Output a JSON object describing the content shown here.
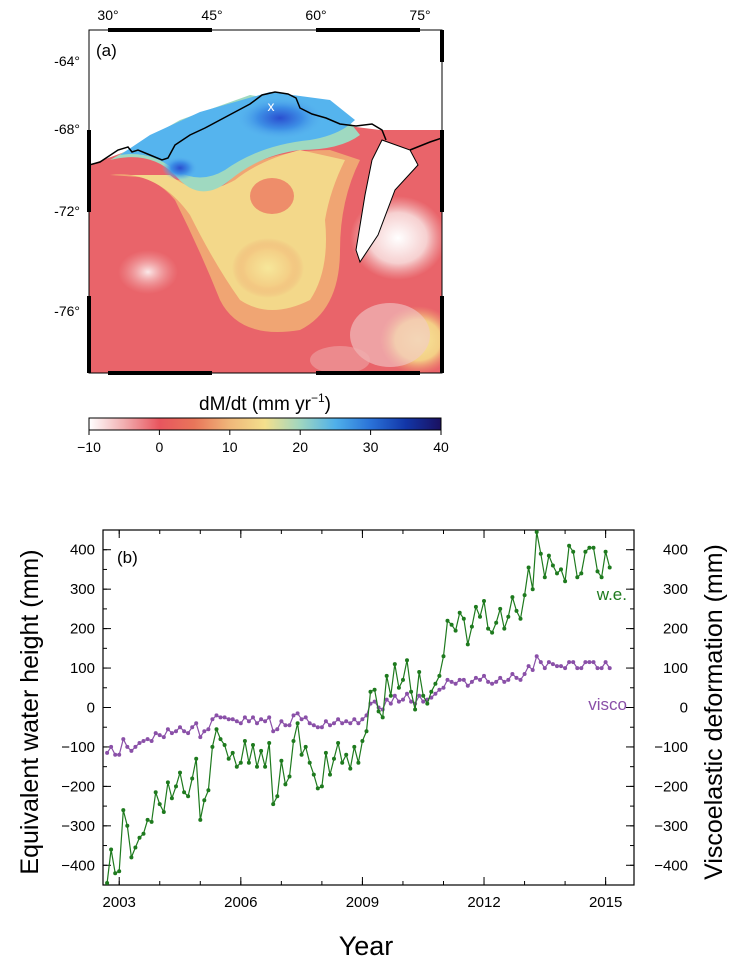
{
  "map_panel": {
    "label": "(a)",
    "lon_ticks": [
      "30°",
      "45°",
      "60°",
      "75°"
    ],
    "lat_ticks": [
      "-64°",
      "-68°",
      "-72°",
      "-76°"
    ],
    "marker": "x",
    "colorbar_title_main": "dM/dt (mm yr",
    "colorbar_title_exp": "−1",
    "colorbar_title_close": ")",
    "colorbar_ticks": [
      "−10",
      "0",
      "10",
      "20",
      "30",
      "40"
    ],
    "colorbar_range": [
      -10,
      40
    ],
    "colorbar_colors": [
      "#ffffff",
      "#f1aeb0",
      "#e8555e",
      "#e9765a",
      "#efb77a",
      "#f4e08d",
      "#9fd6c0",
      "#4fb0ea",
      "#2a72d8",
      "#1236a8",
      "#1a1060"
    ]
  },
  "chart_data": {
    "type": "line",
    "label": "(b)",
    "xlabel": "Year",
    "ylabel_left": "Equivalent water height (mm)",
    "ylabel_right": "Viscoelastic deformation (mm)",
    "xlim": [
      2002.6,
      2015.7
    ],
    "ylim": [
      -450,
      450
    ],
    "x_ticks": [
      "2003",
      "2006",
      "2009",
      "2012",
      "2015"
    ],
    "x_tick_values": [
      2003,
      2006,
      2009,
      2012,
      2015
    ],
    "y_ticks": [
      "400",
      "300",
      "200",
      "100",
      "0",
      "−100",
      "−200",
      "−300",
      "−400"
    ],
    "y_tick_values": [
      400,
      300,
      200,
      100,
      0,
      -100,
      -200,
      -300,
      -400
    ],
    "series": [
      {
        "name": "w.e.",
        "color": "#1e7a1e",
        "points": [
          [
            2002.7,
            -445
          ],
          [
            2002.8,
            -360
          ],
          [
            2002.9,
            -420
          ],
          [
            2003.0,
            -415
          ],
          [
            2003.1,
            -260
          ],
          [
            2003.2,
            -300
          ],
          [
            2003.3,
            -380
          ],
          [
            2003.4,
            -355
          ],
          [
            2003.5,
            -330
          ],
          [
            2003.6,
            -320
          ],
          [
            2003.7,
            -285
          ],
          [
            2003.8,
            -290
          ],
          [
            2003.9,
            -215
          ],
          [
            2004.0,
            -245
          ],
          [
            2004.1,
            -265
          ],
          [
            2004.2,
            -190
          ],
          [
            2004.3,
            -230
          ],
          [
            2004.4,
            -200
          ],
          [
            2004.5,
            -165
          ],
          [
            2004.6,
            -215
          ],
          [
            2004.7,
            -225
          ],
          [
            2004.8,
            -180
          ],
          [
            2004.9,
            -130
          ],
          [
            2005.0,
            -285
          ],
          [
            2005.1,
            -235
          ],
          [
            2005.2,
            -210
          ],
          [
            2005.3,
            -100
          ],
          [
            2005.4,
            -55
          ],
          [
            2005.5,
            -80
          ],
          [
            2005.6,
            -95
          ],
          [
            2005.7,
            -130
          ],
          [
            2005.8,
            -115
          ],
          [
            2005.9,
            -150
          ],
          [
            2006.0,
            -140
          ],
          [
            2006.1,
            -85
          ],
          [
            2006.2,
            -140
          ],
          [
            2006.3,
            -95
          ],
          [
            2006.4,
            -150
          ],
          [
            2006.5,
            -110
          ],
          [
            2006.6,
            -150
          ],
          [
            2006.7,
            -90
          ],
          [
            2006.8,
            -245
          ],
          [
            2006.9,
            -225
          ],
          [
            2007.0,
            -135
          ],
          [
            2007.1,
            -195
          ],
          [
            2007.2,
            -175
          ],
          [
            2007.3,
            -85
          ],
          [
            2007.4,
            -40
          ],
          [
            2007.5,
            -120
          ],
          [
            2007.6,
            -100
          ],
          [
            2007.7,
            -140
          ],
          [
            2007.8,
            -170
          ],
          [
            2007.9,
            -205
          ],
          [
            2008.0,
            -200
          ],
          [
            2008.1,
            -115
          ],
          [
            2008.2,
            -170
          ],
          [
            2008.3,
            -130
          ],
          [
            2008.4,
            -90
          ],
          [
            2008.5,
            -140
          ],
          [
            2008.6,
            -120
          ],
          [
            2008.7,
            -155
          ],
          [
            2008.8,
            -100
          ],
          [
            2008.9,
            -140
          ],
          [
            2009.0,
            -85
          ],
          [
            2009.1,
            -60
          ],
          [
            2009.2,
            40
          ],
          [
            2009.3,
            45
          ],
          [
            2009.4,
            -10
          ],
          [
            2009.5,
            -25
          ],
          [
            2009.6,
            80
          ],
          [
            2009.7,
            30
          ],
          [
            2009.8,
            110
          ],
          [
            2009.9,
            50
          ],
          [
            2010.0,
            70
          ],
          [
            2010.1,
            120
          ],
          [
            2010.2,
            40
          ],
          [
            2010.3,
            -5
          ],
          [
            2010.4,
            90
          ],
          [
            2010.5,
            30
          ],
          [
            2010.6,
            10
          ],
          [
            2010.7,
            40
          ],
          [
            2010.8,
            60
          ],
          [
            2010.9,
            80
          ],
          [
            2011.0,
            130
          ],
          [
            2011.1,
            220
          ],
          [
            2011.2,
            210
          ],
          [
            2011.3,
            195
          ],
          [
            2011.4,
            240
          ],
          [
            2011.5,
            225
          ],
          [
            2011.6,
            160
          ],
          [
            2011.7,
            205
          ],
          [
            2011.8,
            255
          ],
          [
            2011.9,
            230
          ],
          [
            2012.0,
            270
          ],
          [
            2012.1,
            200
          ],
          [
            2012.2,
            190
          ],
          [
            2012.3,
            215
          ],
          [
            2012.4,
            250
          ],
          [
            2012.5,
            200
          ],
          [
            2012.6,
            230
          ],
          [
            2012.7,
            280
          ],
          [
            2012.8,
            245
          ],
          [
            2012.9,
            225
          ],
          [
            2013.0,
            285
          ],
          [
            2013.1,
            355
          ],
          [
            2013.2,
            300
          ],
          [
            2013.3,
            445
          ],
          [
            2013.4,
            390
          ],
          [
            2013.5,
            330
          ],
          [
            2013.6,
            385
          ],
          [
            2013.7,
            360
          ],
          [
            2013.8,
            340
          ],
          [
            2013.9,
            350
          ],
          [
            2014.0,
            320
          ],
          [
            2014.1,
            410
          ],
          [
            2014.2,
            395
          ],
          [
            2014.3,
            330
          ],
          [
            2014.4,
            340
          ],
          [
            2014.5,
            395
          ],
          [
            2014.6,
            405
          ],
          [
            2014.7,
            405
          ],
          [
            2014.8,
            345
          ],
          [
            2014.9,
            330
          ],
          [
            2015.0,
            395
          ],
          [
            2015.1,
            355
          ]
        ]
      },
      {
        "name": "visco",
        "color": "#8a50a8",
        "points": [
          [
            2002.7,
            -115
          ],
          [
            2002.8,
            -100
          ],
          [
            2002.9,
            -120
          ],
          [
            2003.0,
            -120
          ],
          [
            2003.1,
            -80
          ],
          [
            2003.2,
            -100
          ],
          [
            2003.3,
            -110
          ],
          [
            2003.4,
            -100
          ],
          [
            2003.5,
            -90
          ],
          [
            2003.6,
            -85
          ],
          [
            2003.7,
            -80
          ],
          [
            2003.8,
            -85
          ],
          [
            2003.9,
            -65
          ],
          [
            2004.0,
            -70
          ],
          [
            2004.1,
            -75
          ],
          [
            2004.2,
            -55
          ],
          [
            2004.3,
            -65
          ],
          [
            2004.4,
            -60
          ],
          [
            2004.5,
            -50
          ],
          [
            2004.6,
            -60
          ],
          [
            2004.7,
            -65
          ],
          [
            2004.8,
            -50
          ],
          [
            2004.9,
            -40
          ],
          [
            2005.0,
            -75
          ],
          [
            2005.1,
            -60
          ],
          [
            2005.2,
            -55
          ],
          [
            2005.3,
            -30
          ],
          [
            2005.4,
            -20
          ],
          [
            2005.5,
            -25
          ],
          [
            2005.6,
            -25
          ],
          [
            2005.7,
            -30
          ],
          [
            2005.8,
            -30
          ],
          [
            2005.9,
            -35
          ],
          [
            2006.0,
            -40
          ],
          [
            2006.1,
            -25
          ],
          [
            2006.2,
            -35
          ],
          [
            2006.3,
            -25
          ],
          [
            2006.4,
            -40
          ],
          [
            2006.5,
            -30
          ],
          [
            2006.6,
            -35
          ],
          [
            2006.7,
            -25
          ],
          [
            2006.8,
            -60
          ],
          [
            2006.9,
            -55
          ],
          [
            2007.0,
            -35
          ],
          [
            2007.1,
            -45
          ],
          [
            2007.2,
            -45
          ],
          [
            2007.3,
            -20
          ],
          [
            2007.4,
            -15
          ],
          [
            2007.5,
            -30
          ],
          [
            2007.6,
            -25
          ],
          [
            2007.7,
            -40
          ],
          [
            2007.8,
            -45
          ],
          [
            2007.9,
            -50
          ],
          [
            2008.0,
            -50
          ],
          [
            2008.1,
            -35
          ],
          [
            2008.2,
            -45
          ],
          [
            2008.3,
            -40
          ],
          [
            2008.4,
            -30
          ],
          [
            2008.5,
            -40
          ],
          [
            2008.6,
            -35
          ],
          [
            2008.7,
            -40
          ],
          [
            2008.8,
            -30
          ],
          [
            2008.9,
            -40
          ],
          [
            2009.0,
            -30
          ],
          [
            2009.1,
            -20
          ],
          [
            2009.2,
            10
          ],
          [
            2009.3,
            15
          ],
          [
            2009.4,
            0
          ],
          [
            2009.5,
            -5
          ],
          [
            2009.6,
            20
          ],
          [
            2009.7,
            10
          ],
          [
            2009.8,
            30
          ],
          [
            2009.9,
            15
          ],
          [
            2010.0,
            20
          ],
          [
            2010.1,
            35
          ],
          [
            2010.2,
            15
          ],
          [
            2010.3,
            10
          ],
          [
            2010.4,
            30
          ],
          [
            2010.5,
            15
          ],
          [
            2010.6,
            20
          ],
          [
            2010.7,
            25
          ],
          [
            2010.8,
            35
          ],
          [
            2010.9,
            45
          ],
          [
            2011.0,
            50
          ],
          [
            2011.1,
            70
          ],
          [
            2011.2,
            65
          ],
          [
            2011.3,
            60
          ],
          [
            2011.4,
            70
          ],
          [
            2011.5,
            70
          ],
          [
            2011.6,
            55
          ],
          [
            2011.7,
            65
          ],
          [
            2011.8,
            75
          ],
          [
            2011.9,
            70
          ],
          [
            2012.0,
            80
          ],
          [
            2012.1,
            65
          ],
          [
            2012.2,
            60
          ],
          [
            2012.3,
            65
          ],
          [
            2012.4,
            75
          ],
          [
            2012.5,
            65
          ],
          [
            2012.6,
            70
          ],
          [
            2012.7,
            85
          ],
          [
            2012.8,
            75
          ],
          [
            2012.9,
            70
          ],
          [
            2013.0,
            85
          ],
          [
            2013.1,
            105
          ],
          [
            2013.2,
            95
          ],
          [
            2013.3,
            130
          ],
          [
            2013.4,
            115
          ],
          [
            2013.5,
            100
          ],
          [
            2013.6,
            115
          ],
          [
            2013.7,
            110
          ],
          [
            2013.8,
            105
          ],
          [
            2013.9,
            105
          ],
          [
            2014.0,
            100
          ],
          [
            2014.1,
            115
          ],
          [
            2014.2,
            115
          ],
          [
            2014.3,
            100
          ],
          [
            2014.4,
            100
          ],
          [
            2014.5,
            115
          ],
          [
            2014.6,
            115
          ],
          [
            2014.7,
            115
          ],
          [
            2014.8,
            100
          ],
          [
            2014.9,
            100
          ],
          [
            2015.0,
            115
          ],
          [
            2015.1,
            100
          ]
        ]
      }
    ]
  }
}
